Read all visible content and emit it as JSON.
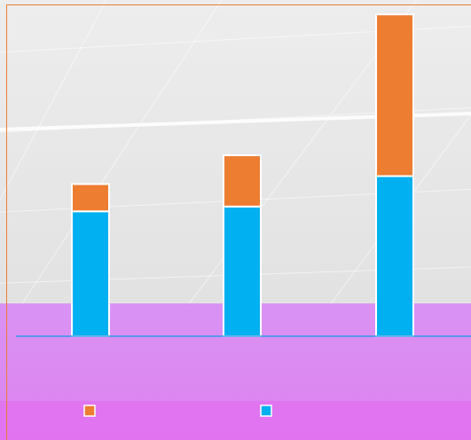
{
  "chart_data": {
    "type": "bar",
    "stacked": true,
    "categories": [
      "",
      "",
      ""
    ],
    "series": [
      {
        "color": "#00B0F0",
        "values": [
          78,
          81,
          100
        ]
      },
      {
        "color": "#ED7D31",
        "values": [
          17,
          32,
          101
        ]
      }
    ],
    "ylim": [
      0,
      210
    ],
    "grid": false,
    "legend": "bottom",
    "axis_color": "#2E9BE6"
  }
}
